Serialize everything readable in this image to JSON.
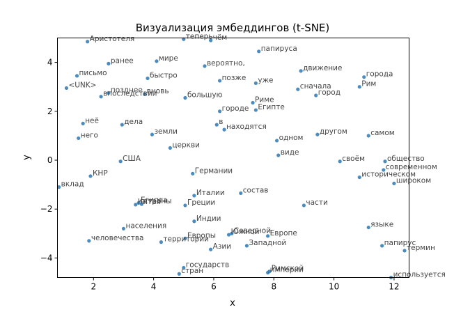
{
  "chart_data": {
    "type": "scatter",
    "title": "Визуализация эмбеддингов (t-SNE)",
    "xlabel": "x",
    "ylabel": "y",
    "xlim": [
      0.8,
      12.5
    ],
    "ylim": [
      -4.8,
      5.0
    ],
    "xticks": [
      "2",
      "4",
      "6",
      "8",
      "10",
      "12"
    ],
    "yticks": [
      "4",
      "2",
      "0",
      "−2",
      "−4"
    ],
    "xtick_values": [
      2,
      4,
      6,
      8,
      10,
      12
    ],
    "ytick_values": [
      4,
      2,
      0,
      -2,
      -4
    ],
    "grid": false,
    "point_color": "#2a78b5",
    "points": [
      {
        "label": "Аристотеля",
        "x": 1.8,
        "y": 4.85
      },
      {
        "label": "теперь",
        "x": 5.0,
        "y": 4.95
      },
      {
        "label": "чём",
        "x": 5.9,
        "y": 4.9
      },
      {
        "label": "папируса",
        "x": 7.5,
        "y": 4.45
      },
      {
        "label": "ранее",
        "x": 2.5,
        "y": 3.95
      },
      {
        "label": "мире",
        "x": 4.1,
        "y": 4.05
      },
      {
        "label": "вероятно,",
        "x": 5.7,
        "y": 3.85
      },
      {
        "label": "движение",
        "x": 8.9,
        "y": 3.65
      },
      {
        "label": "письмо",
        "x": 1.45,
        "y": 3.45
      },
      {
        "label": "быстро",
        "x": 3.8,
        "y": 3.35
      },
      {
        "label": "позже",
        "x": 6.2,
        "y": 3.25
      },
      {
        "label": "уже",
        "x": 7.4,
        "y": 3.15
      },
      {
        "label": "города",
        "x": 11.0,
        "y": 3.4
      },
      {
        "label": "<UNK>",
        "x": 1.1,
        "y": 2.95
      },
      {
        "label": "позднее",
        "x": 2.5,
        "y": 2.75
      },
      {
        "label": "впоследствии",
        "x": 2.25,
        "y": 2.6
      },
      {
        "label": "вновь",
        "x": 3.7,
        "y": 2.7
      },
      {
        "label": "сначала",
        "x": 8.8,
        "y": 2.9
      },
      {
        "label": "Рим",
        "x": 10.85,
        "y": 3.0
      },
      {
        "label": "город",
        "x": 9.4,
        "y": 2.65
      },
      {
        "label": "большую",
        "x": 5.05,
        "y": 2.55
      },
      {
        "label": "Риме",
        "x": 7.3,
        "y": 2.35
      },
      {
        "label": "городе",
        "x": 6.2,
        "y": 2.0
      },
      {
        "label": "Египте",
        "x": 7.4,
        "y": 2.05
      },
      {
        "label": "неё",
        "x": 1.65,
        "y": 1.5
      },
      {
        "label": "дела",
        "x": 2.95,
        "y": 1.45
      },
      {
        "label": "в",
        "x": 6.1,
        "y": 1.45
      },
      {
        "label": "находятся",
        "x": 6.35,
        "y": 1.25
      },
      {
        "label": "земли",
        "x": 3.95,
        "y": 1.05
      },
      {
        "label": "другом",
        "x": 9.45,
        "y": 1.05
      },
      {
        "label": "самом",
        "x": 11.15,
        "y": 1.0
      },
      {
        "label": "него",
        "x": 1.5,
        "y": 0.9
      },
      {
        "label": "одном",
        "x": 8.1,
        "y": 0.8
      },
      {
        "label": "церкви",
        "x": 4.55,
        "y": 0.5
      },
      {
        "label": "виде",
        "x": 8.15,
        "y": 0.2
      },
      {
        "label": "США",
        "x": 2.9,
        "y": -0.05
      },
      {
        "label": "своём",
        "x": 10.2,
        "y": -0.05
      },
      {
        "label": "общество",
        "x": 11.7,
        "y": -0.05
      },
      {
        "label": "современном",
        "x": 11.65,
        "y": -0.4
      },
      {
        "label": "Германии",
        "x": 5.3,
        "y": -0.55
      },
      {
        "label": "КНР",
        "x": 1.9,
        "y": -0.65
      },
      {
        "label": "историческом",
        "x": 10.85,
        "y": -0.7
      },
      {
        "label": "широком",
        "x": 12.0,
        "y": -0.95
      },
      {
        "label": "вклад",
        "x": 0.85,
        "y": -1.1
      },
      {
        "label": "состав",
        "x": 6.9,
        "y": -1.35
      },
      {
        "label": "Италии",
        "x": 5.35,
        "y": -1.45
      },
      {
        "label": "Египта",
        "x": 3.5,
        "y": -1.75
      },
      {
        "label": "страны",
        "x": 3.6,
        "y": -1.8
      },
      {
        "label": "Китая",
        "x": 3.4,
        "y": -1.82
      },
      {
        "label": "Греции",
        "x": 5.05,
        "y": -1.85
      },
      {
        "label": "части",
        "x": 9.0,
        "y": -1.85
      },
      {
        "label": "Индии",
        "x": 5.35,
        "y": -2.5
      },
      {
        "label": "населения",
        "x": 3.0,
        "y": -2.8
      },
      {
        "label": "языке",
        "x": 11.15,
        "y": -2.75
      },
      {
        "label": "Северной",
        "x": 6.6,
        "y": -3.0
      },
      {
        "label": "Южной",
        "x": 6.5,
        "y": -3.05
      },
      {
        "label": "Европе",
        "x": 7.8,
        "y": -3.1
      },
      {
        "label": "Европы",
        "x": 5.05,
        "y": -3.2
      },
      {
        "label": "человечества",
        "x": 1.85,
        "y": -3.3
      },
      {
        "label": "территории",
        "x": 4.25,
        "y": -3.35
      },
      {
        "label": "Западной",
        "x": 7.1,
        "y": -3.5
      },
      {
        "label": "папирус",
        "x": 11.6,
        "y": -3.5
      },
      {
        "label": "Азии",
        "x": 5.9,
        "y": -3.65
      },
      {
        "label": "термин",
        "x": 12.35,
        "y": -3.7
      },
      {
        "label": "государств",
        "x": 5.0,
        "y": -4.4
      },
      {
        "label": "Римской",
        "x": 7.85,
        "y": -4.55
      },
      {
        "label": "империи",
        "x": 7.8,
        "y": -4.6
      },
      {
        "label": "стран",
        "x": 4.85,
        "y": -4.65
      },
      {
        "label": "используется",
        "x": 11.9,
        "y": -4.8
      }
    ]
  }
}
